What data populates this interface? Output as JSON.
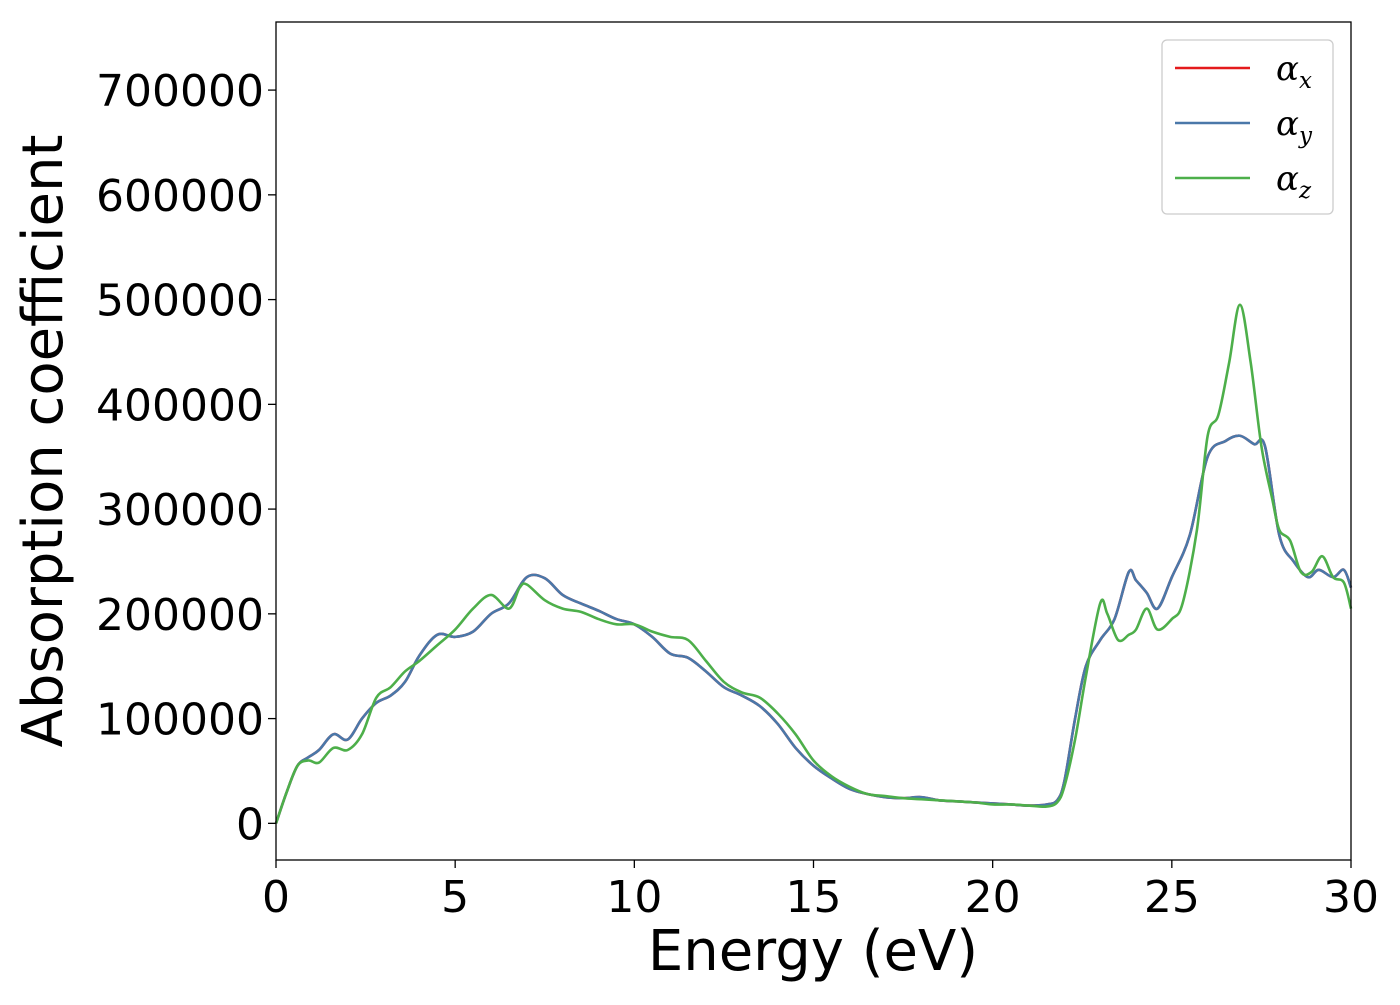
{
  "chart_data": {
    "type": "line",
    "title": "",
    "xlabel": "Energy (eV)",
    "ylabel": "Absorption coefficient",
    "xlim": [
      0,
      30
    ],
    "ylim": [
      -35000,
      765000
    ],
    "xticks": [
      0,
      5,
      10,
      15,
      20,
      25,
      30
    ],
    "yticks": [
      0,
      100000,
      200000,
      300000,
      400000,
      500000,
      600000,
      700000
    ],
    "grid": false,
    "legend_position": "top-right",
    "series": [
      {
        "name": "αx",
        "legend_symbol": "α",
        "legend_subscript": "x",
        "color": "#e41a1c",
        "x": [
          0,
          0.3,
          0.6,
          0.9,
          1.2,
          1.6,
          2.0,
          2.4,
          2.8,
          3.2,
          3.6,
          4.0,
          4.5,
          5.0,
          5.5,
          6.0,
          6.5,
          7.0,
          7.5,
          8.0,
          8.5,
          9.0,
          9.5,
          10.0,
          10.5,
          11.0,
          11.5,
          12.0,
          12.5,
          13.0,
          13.5,
          14.0,
          14.5,
          15.0,
          15.5,
          16.0,
          16.5,
          17.0,
          17.5,
          18.0,
          18.5,
          19.0,
          19.5,
          20.0,
          20.5,
          21.0,
          21.5,
          21.8,
          22.0,
          22.3,
          22.6,
          23.0,
          23.4,
          23.8,
          24.0,
          24.3,
          24.6,
          25.0,
          25.5,
          26.0,
          26.5,
          26.9,
          27.3,
          27.6,
          28.0,
          28.4,
          28.8,
          29.1,
          29.5,
          29.8,
          30.0
        ],
        "values": [
          0,
          30000,
          55000,
          63000,
          70000,
          85000,
          80000,
          100000,
          115000,
          122000,
          135000,
          160000,
          180000,
          178000,
          183000,
          200000,
          210000,
          235000,
          234000,
          218000,
          210000,
          203000,
          195000,
          190000,
          178000,
          162000,
          158000,
          145000,
          130000,
          122000,
          112000,
          95000,
          72000,
          55000,
          43000,
          33000,
          28000,
          25000,
          24000,
          25000,
          22000,
          21000,
          20000,
          19000,
          18000,
          17000,
          18000,
          22000,
          40000,
          100000,
          150000,
          175000,
          195000,
          240000,
          232000,
          220000,
          205000,
          235000,
          275000,
          350000,
          365000,
          370000,
          362000,
          360000,
          275000,
          250000,
          235000,
          242000,
          235000,
          242000,
          225000
        ]
      },
      {
        "name": "αy",
        "legend_symbol": "α",
        "legend_subscript": "y",
        "color": "#4a78a9",
        "x": [
          0,
          0.3,
          0.6,
          0.9,
          1.2,
          1.6,
          2.0,
          2.4,
          2.8,
          3.2,
          3.6,
          4.0,
          4.5,
          5.0,
          5.5,
          6.0,
          6.5,
          7.0,
          7.5,
          8.0,
          8.5,
          9.0,
          9.5,
          10.0,
          10.5,
          11.0,
          11.5,
          12.0,
          12.5,
          13.0,
          13.5,
          14.0,
          14.5,
          15.0,
          15.5,
          16.0,
          16.5,
          17.0,
          17.5,
          18.0,
          18.5,
          19.0,
          19.5,
          20.0,
          20.5,
          21.0,
          21.5,
          21.8,
          22.0,
          22.3,
          22.6,
          23.0,
          23.4,
          23.8,
          24.0,
          24.3,
          24.6,
          25.0,
          25.5,
          26.0,
          26.5,
          26.9,
          27.3,
          27.6,
          28.0,
          28.4,
          28.8,
          29.1,
          29.5,
          29.8,
          30.0
        ],
        "values": [
          0,
          30000,
          55000,
          63000,
          70000,
          85000,
          80000,
          100000,
          115000,
          122000,
          135000,
          160000,
          180000,
          178000,
          183000,
          200000,
          210000,
          235000,
          234000,
          218000,
          210000,
          203000,
          195000,
          190000,
          178000,
          162000,
          158000,
          145000,
          130000,
          122000,
          112000,
          95000,
          72000,
          55000,
          43000,
          33000,
          28000,
          25000,
          24000,
          25000,
          22000,
          21000,
          20000,
          19000,
          18000,
          17000,
          18000,
          22000,
          40000,
          100000,
          150000,
          175000,
          195000,
          240000,
          232000,
          220000,
          205000,
          235000,
          275000,
          350000,
          365000,
          370000,
          362000,
          360000,
          275000,
          250000,
          235000,
          242000,
          235000,
          242000,
          225000
        ]
      },
      {
        "name": "αz",
        "legend_symbol": "α",
        "legend_subscript": "z",
        "color": "#4daf4a",
        "x": [
          0,
          0.3,
          0.6,
          0.9,
          1.2,
          1.6,
          2.0,
          2.4,
          2.8,
          3.2,
          3.6,
          4.0,
          4.5,
          5.0,
          5.5,
          6.0,
          6.5,
          6.8,
          7.0,
          7.5,
          8.0,
          8.5,
          9.0,
          9.5,
          10.0,
          10.5,
          11.0,
          11.5,
          12.0,
          12.5,
          13.0,
          13.5,
          14.0,
          14.5,
          15.0,
          15.5,
          16.0,
          16.5,
          17.0,
          17.5,
          18.0,
          18.5,
          19.0,
          19.5,
          20.0,
          20.5,
          21.0,
          21.5,
          21.8,
          22.0,
          22.3,
          22.6,
          23.0,
          23.2,
          23.5,
          23.8,
          24.0,
          24.3,
          24.6,
          25.0,
          25.3,
          25.7,
          26.0,
          26.3,
          26.6,
          26.9,
          27.2,
          27.5,
          27.8,
          28.0,
          28.3,
          28.6,
          28.9,
          29.2,
          29.5,
          29.8,
          30.0
        ],
        "values": [
          0,
          30000,
          55000,
          60000,
          58000,
          72000,
          70000,
          85000,
          120000,
          130000,
          145000,
          155000,
          170000,
          185000,
          205000,
          218000,
          205000,
          225000,
          228000,
          213000,
          205000,
          202000,
          195000,
          190000,
          190000,
          183000,
          178000,
          175000,
          155000,
          135000,
          125000,
          120000,
          105000,
          85000,
          60000,
          45000,
          35000,
          28000,
          26000,
          24000,
          23000,
          22000,
          21000,
          20000,
          18000,
          18000,
          17000,
          16000,
          20000,
          35000,
          80000,
          140000,
          210000,
          200000,
          175000,
          180000,
          185000,
          205000,
          185000,
          195000,
          210000,
          280000,
          370000,
          390000,
          440000,
          495000,
          440000,
          360000,
          310000,
          280000,
          270000,
          240000,
          240000,
          255000,
          235000,
          230000,
          205000
        ]
      }
    ]
  }
}
